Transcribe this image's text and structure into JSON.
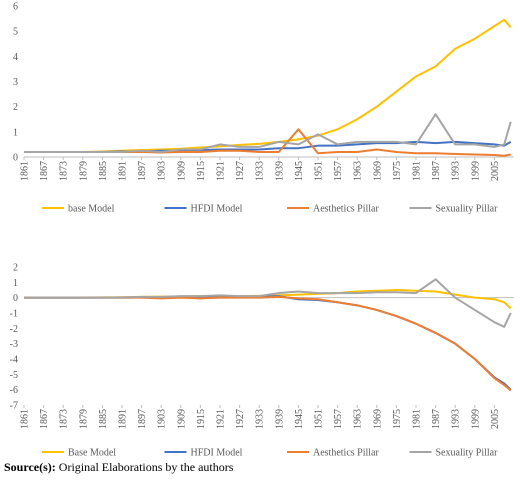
{
  "chart_data": [
    {
      "type": "line",
      "x": [
        1861,
        1867,
        1873,
        1879,
        1885,
        1891,
        1897,
        1903,
        1909,
        1915,
        1921,
        1927,
        1933,
        1939,
        1945,
        1951,
        1957,
        1963,
        1969,
        1975,
        1981,
        1987,
        1993,
        1999,
        2005,
        2008,
        2010
      ],
      "xlim": [
        1861,
        2011
      ],
      "xticks": [
        1861,
        1867,
        1873,
        1879,
        1885,
        1891,
        1897,
        1903,
        1909,
        1915,
        1921,
        1927,
        1933,
        1939,
        1945,
        1951,
        1957,
        1963,
        1969,
        1975,
        1981,
        1987,
        1993,
        1999,
        2005
      ],
      "ylim": [
        0,
        6
      ],
      "yticks": [
        0,
        1,
        2,
        3,
        4,
        5,
        6
      ],
      "grid": false,
      "series": [
        {
          "name": "base Model",
          "color": "#ffc000",
          "values": [
            0.2,
            0.2,
            0.2,
            0.2,
            0.22,
            0.25,
            0.28,
            0.3,
            0.33,
            0.38,
            0.42,
            0.48,
            0.52,
            0.6,
            0.7,
            0.85,
            1.1,
            1.5,
            2.0,
            2.6,
            3.2,
            3.6,
            4.3,
            4.7,
            5.2,
            5.45,
            5.15
          ]
        },
        {
          "name": "HFDI Model",
          "color": "#4472c4",
          "values": [
            0.2,
            0.2,
            0.2,
            0.2,
            0.2,
            0.22,
            0.22,
            0.25,
            0.25,
            0.28,
            0.3,
            0.3,
            0.3,
            0.35,
            0.35,
            0.45,
            0.45,
            0.5,
            0.55,
            0.55,
            0.6,
            0.55,
            0.6,
            0.55,
            0.5,
            0.45,
            0.6
          ]
        },
        {
          "name": "Aesthetics Pillar",
          "color": "#ed7d31",
          "values": [
            0.2,
            0.2,
            0.2,
            0.2,
            0.2,
            0.2,
            0.2,
            0.18,
            0.2,
            0.2,
            0.25,
            0.25,
            0.2,
            0.2,
            1.1,
            0.15,
            0.2,
            0.2,
            0.3,
            0.2,
            0.15,
            0.15,
            0.12,
            0.1,
            0.08,
            0.05,
            0.1
          ]
        },
        {
          "name": "Sexuality Pillar",
          "color": "#a5a5a5",
          "values": [
            0.2,
            0.2,
            0.2,
            0.2,
            0.2,
            0.2,
            0.25,
            0.2,
            0.3,
            0.3,
            0.5,
            0.4,
            0.4,
            0.6,
            0.5,
            0.9,
            0.5,
            0.6,
            0.6,
            0.6,
            0.5,
            1.7,
            0.5,
            0.5,
            0.4,
            0.5,
            1.4
          ]
        }
      ]
    },
    {
      "type": "line",
      "x": [
        1861,
        1867,
        1873,
        1879,
        1885,
        1891,
        1897,
        1903,
        1909,
        1915,
        1921,
        1927,
        1933,
        1939,
        1945,
        1951,
        1957,
        1963,
        1969,
        1975,
        1981,
        1987,
        1993,
        1999,
        2005,
        2008,
        2010
      ],
      "xlim": [
        1861,
        2011
      ],
      "xticks": [
        1861,
        1867,
        1873,
        1879,
        1885,
        1891,
        1897,
        1903,
        1909,
        1915,
        1921,
        1927,
        1933,
        1939,
        1945,
        1951,
        1957,
        1963,
        1969,
        1975,
        1981,
        1987,
        1993,
        1999,
        2005
      ],
      "ylim": [
        -7,
        2
      ],
      "yticks": [
        -7,
        -6,
        -5,
        -4,
        -3,
        -2,
        -1,
        0,
        1,
        2
      ],
      "grid": false,
      "series": [
        {
          "name": "Base Model",
          "color": "#ffc000",
          "values": [
            0,
            0,
            0,
            0,
            0.02,
            0.03,
            0.05,
            0.07,
            0.08,
            0.1,
            0.1,
            0.1,
            0.12,
            0.15,
            0.2,
            0.25,
            0.3,
            0.4,
            0.45,
            0.5,
            0.45,
            0.4,
            0.2,
            0.0,
            -0.1,
            -0.3,
            -0.7
          ]
        },
        {
          "name": "HFDI Model",
          "color": "#4472c4",
          "values": [
            0,
            0,
            0,
            0,
            0,
            0,
            0.02,
            0.02,
            0.02,
            0.02,
            0.05,
            0.05,
            0.05,
            0.1,
            -0.1,
            -0.15,
            -0.3,
            -0.5,
            -0.8,
            -1.2,
            -1.7,
            -2.3,
            -3.0,
            -4.0,
            -5.2,
            -5.6,
            -6.0
          ]
        },
        {
          "name": "Aesthetics Pillar",
          "color": "#ed7d31",
          "values": [
            0,
            0,
            0,
            0,
            0,
            0,
            0,
            -0.05,
            0,
            -0.05,
            0,
            0,
            0,
            0.05,
            -0.05,
            -0.1,
            -0.3,
            -0.5,
            -0.8,
            -1.2,
            -1.7,
            -2.3,
            -3.0,
            -4.0,
            -5.25,
            -5.7,
            -6.05
          ]
        },
        {
          "name": "Sexuality Pillar",
          "color": "#a5a5a5",
          "values": [
            0,
            0,
            0,
            0,
            0,
            0.02,
            0.05,
            0.05,
            0.1,
            0.1,
            0.15,
            0.1,
            0.1,
            0.3,
            0.4,
            0.3,
            0.3,
            0.3,
            0.35,
            0.35,
            0.3,
            1.2,
            0.0,
            -0.8,
            -1.6,
            -1.9,
            -1.0
          ]
        }
      ]
    }
  ],
  "source": {
    "label": "Source(s):",
    "text": "Original Elaborations by the authors"
  }
}
